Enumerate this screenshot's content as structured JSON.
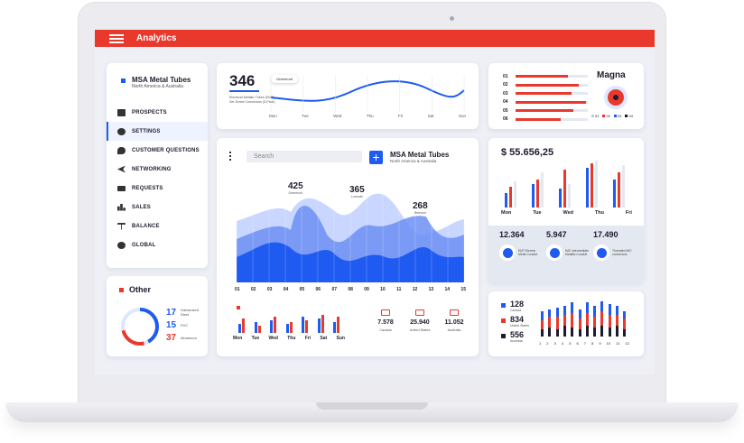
{
  "app": {
    "title": "Analytics"
  },
  "sidebar": {
    "company": "MSA Metal Tubes",
    "region": "North America & Australia",
    "items": [
      {
        "label": "PROSPECTS",
        "icon": "briefcase-icon"
      },
      {
        "label": "SETTINGS",
        "icon": "gear-icon"
      },
      {
        "label": "CUSTOMER QUESTIONS",
        "icon": "chat-icon"
      },
      {
        "label": "NETWORKING",
        "icon": "share-icon"
      },
      {
        "label": "REQUESTS",
        "icon": "mail-icon"
      },
      {
        "label": "SALES",
        "icon": "bar-chart-icon"
      },
      {
        "label": "BALANCE",
        "icon": "scale-icon"
      },
      {
        "label": "GLOBAL",
        "icon": "globe-icon"
      }
    ]
  },
  "other": {
    "title": "Other",
    "items": [
      {
        "value": "17",
        "label": "Galvanized Steel"
      },
      {
        "value": "15",
        "label": "PVC"
      },
      {
        "value": "37",
        "label": "Aluminum"
      }
    ]
  },
  "top_line": {
    "value": "346",
    "badge": "Greenrunt",
    "desc": "Electrical Metallic Tubes (EMT) Set-Screw Connectors (5-Pack)",
    "days": [
      "Mon",
      "Tue",
      "Wed",
      "Thu",
      "Fri",
      "Sat",
      "Sun"
    ]
  },
  "main": {
    "search_placeholder": "Search",
    "company": "MSA Metal Tubes",
    "region": "North America & Australia",
    "peaks": [
      {
        "value": "425",
        "label": "Greenrunt"
      },
      {
        "value": "365",
        "label": "Lommet"
      },
      {
        "value": "268",
        "label": "Belerum"
      }
    ],
    "x_labels": [
      "01",
      "02",
      "03",
      "04",
      "05",
      "06",
      "07",
      "08",
      "09",
      "10",
      "11",
      "12",
      "13",
      "14",
      "15"
    ],
    "week": [
      "Mon",
      "Tue",
      "Wed",
      "Thu",
      "Fri",
      "Sat",
      "Sun"
    ],
    "regions": [
      {
        "value": "7.578",
        "label": "Canada"
      },
      {
        "value": "25.940",
        "label": "United States"
      },
      {
        "value": "11.052",
        "label": "Australia"
      }
    ]
  },
  "magna": {
    "title": "Magna",
    "rows": [
      "01",
      "02",
      "03",
      "04",
      "05",
      "06"
    ],
    "legend": [
      "01",
      "02",
      "03",
      "04"
    ]
  },
  "money": {
    "amount": "$ 55.656,25",
    "days": [
      "Mon",
      "Tue",
      "Wed",
      "Thu",
      "Fri"
    ],
    "stats": [
      {
        "value": "12.364",
        "label": "EMT Electric Metal Conduit"
      },
      {
        "value": "5.947",
        "label": "IMC Intermediate Metallic Conduit"
      },
      {
        "value": "17.490",
        "label": "Threaded IMC connectors"
      }
    ]
  },
  "bottom_right": {
    "stats": [
      {
        "value": "128",
        "label": "Canada",
        "color": "#1f5bf0"
      },
      {
        "value": "834",
        "label": "United States",
        "color": "#e8392c"
      },
      {
        "value": "556",
        "label": "Australia",
        "color": "#1c1c2e"
      }
    ],
    "x_labels": [
      "1",
      "2",
      "3",
      "4",
      "5",
      "6",
      "7",
      "8",
      "9",
      "10",
      "11",
      "12"
    ]
  },
  "colors": {
    "accent": "#e8392c",
    "blue": "#1f5bf0",
    "dark": "#1c1c2e"
  }
}
